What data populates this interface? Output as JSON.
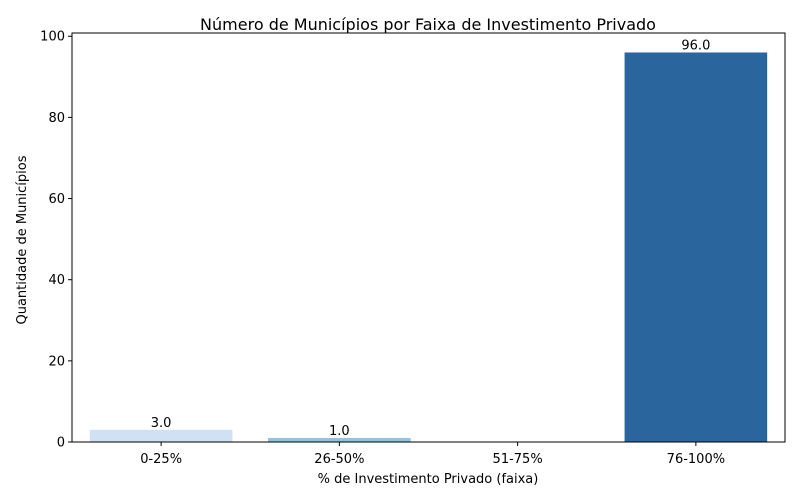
{
  "chart_data": {
    "type": "bar",
    "title": "Número de Municípios por Faixa de Investimento Privado",
    "xlabel": "% de Investimento Privado (faixa)",
    "ylabel": "Quantidade de Municípios",
    "categories": [
      "0-25%",
      "26-50%",
      "51-75%",
      "76-100%"
    ],
    "values": [
      3.0,
      1.0,
      0,
      96.0
    ],
    "data_labels": [
      "3.0",
      "1.0",
      "",
      "96.0"
    ],
    "colors": [
      "#cfe1f2",
      "#93c4de",
      "#4a98c9",
      "#2a659e"
    ],
    "ylim": [
      0,
      100.8
    ],
    "yticks": [
      0,
      20,
      40,
      60,
      80,
      100
    ],
    "grid": false,
    "legend": "none"
  }
}
